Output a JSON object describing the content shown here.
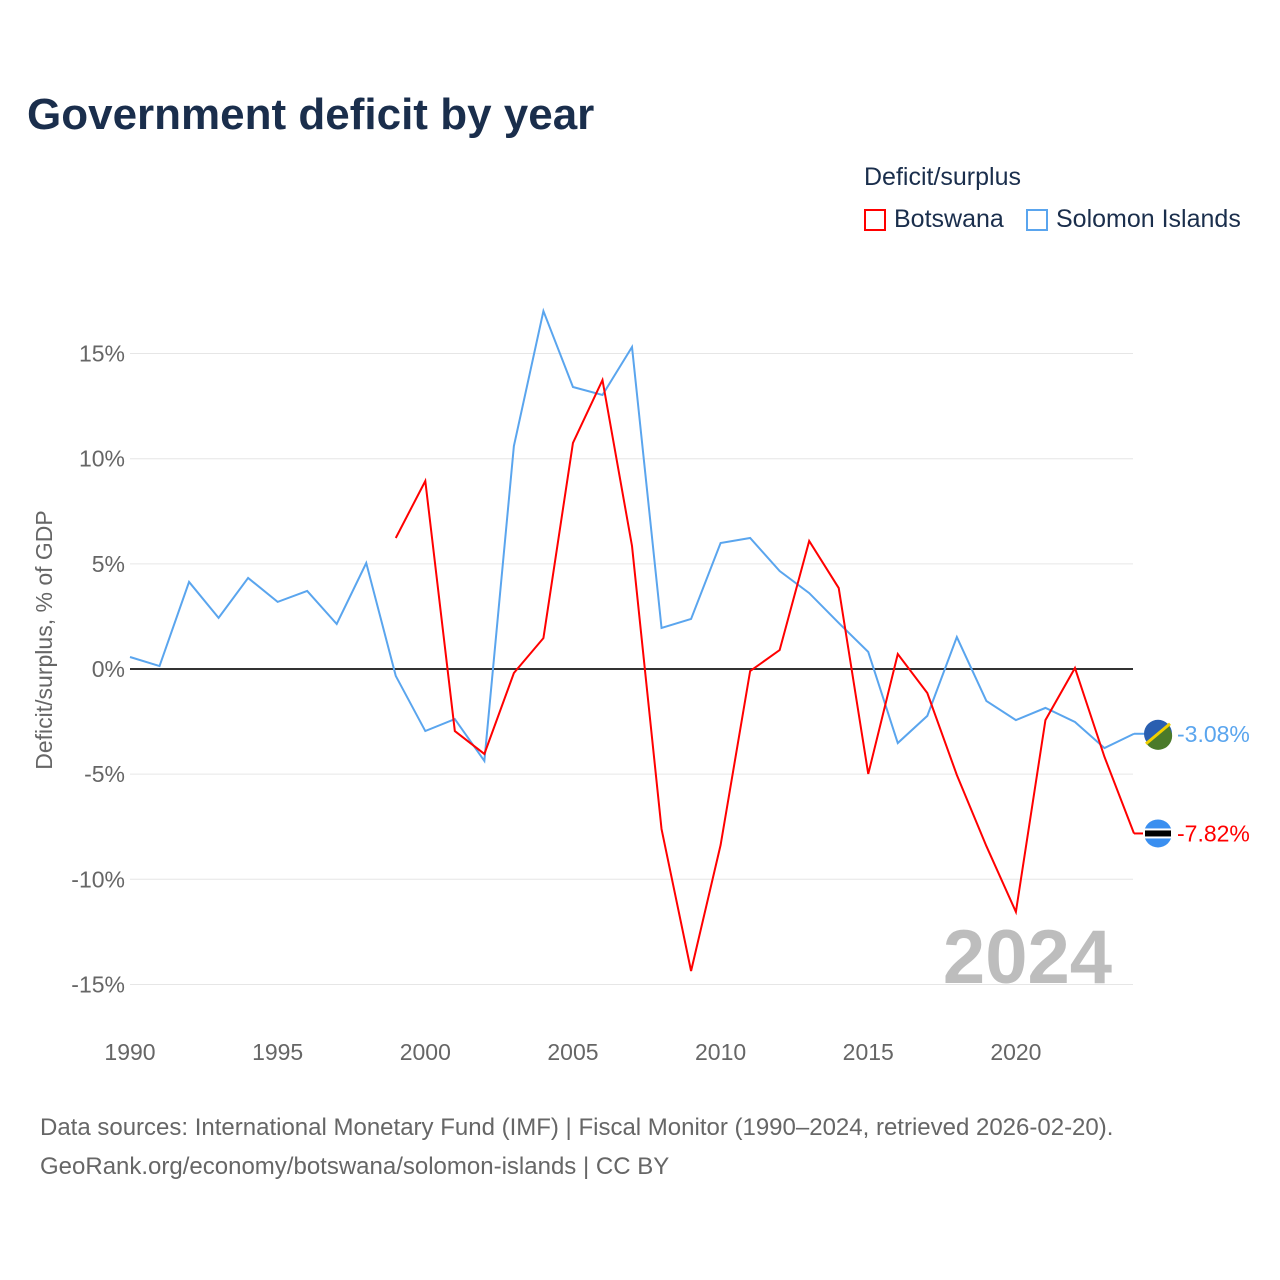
{
  "title": "Government deficit by year",
  "legend": {
    "title": "Deficit/surplus",
    "items": [
      {
        "name": "Botswana",
        "color": "#ff0000"
      },
      {
        "name": "Solomon Islands",
        "color": "#5aa5ee"
      }
    ]
  },
  "source": {
    "line1": "Data sources: International Monetary Fund (IMF) | Fiscal Monitor (1990–2024, retrieved 2026-02-20).",
    "line2": "GeoRank.org/economy/botswana/solomon-islands | CC BY"
  },
  "chart_data": {
    "type": "line",
    "title": "Government deficit by year",
    "xlabel": "",
    "ylabel": "Deficit/surplus, % of GDP",
    "xlim": [
      1990,
      2024
    ],
    "ylim": [
      -17,
      19
    ],
    "xticks": [
      1990,
      1995,
      2000,
      2005,
      2010,
      2015,
      2020
    ],
    "yticks": [
      15,
      10,
      5,
      0,
      -5,
      -10,
      -15
    ],
    "ytick_labels": [
      "15%",
      "10%",
      "5%",
      "0%",
      "-5%",
      "-10%",
      "-15%"
    ],
    "watermark_year": "2024",
    "series": [
      {
        "name": "Solomon Islands",
        "color": "#5aa5ee",
        "end_label": "-3.08%",
        "x": [
          1990,
          1991,
          1992,
          1993,
          1994,
          1995,
          1996,
          1997,
          1998,
          1999,
          2000,
          2001,
          2002,
          2003,
          2004,
          2005,
          2006,
          2007,
          2008,
          2009,
          2010,
          2011,
          2012,
          2013,
          2014,
          2015,
          2016,
          2017,
          2018,
          2019,
          2020,
          2021,
          2022,
          2023,
          2024
        ],
        "values": [
          0.57,
          0.14,
          4.14,
          2.43,
          4.33,
          3.19,
          3.71,
          2.14,
          5.04,
          -0.33,
          -2.95,
          -2.38,
          -4.37,
          10.6,
          17.02,
          13.41,
          13.03,
          15.31,
          1.95,
          2.38,
          5.99,
          6.23,
          4.66,
          3.61,
          2.19,
          0.81,
          -3.52,
          -2.23,
          1.52,
          -1.52,
          -2.43,
          -1.85,
          -2.52,
          -3.76,
          -3.08
        ]
      },
      {
        "name": "Botswana",
        "color": "#ff0000",
        "end_label": "-7.82%",
        "x": [
          1999,
          2000,
          2001,
          2002,
          2003,
          2004,
          2005,
          2006,
          2007,
          2008,
          2009,
          2010,
          2011,
          2012,
          2013,
          2014,
          2015,
          2016,
          2017,
          2018,
          2019,
          2020,
          2021,
          2022,
          2023,
          2024
        ],
        "values": [
          6.23,
          8.94,
          -2.95,
          -4.04,
          -0.19,
          1.47,
          10.75,
          13.74,
          5.85,
          -7.61,
          -14.36,
          -8.37,
          -0.1,
          0.9,
          6.09,
          3.85,
          -4.99,
          0.71,
          -1.14,
          -5.04,
          -8.42,
          -11.55,
          -2.43,
          0.05,
          -4.18,
          -7.82
        ]
      }
    ]
  }
}
